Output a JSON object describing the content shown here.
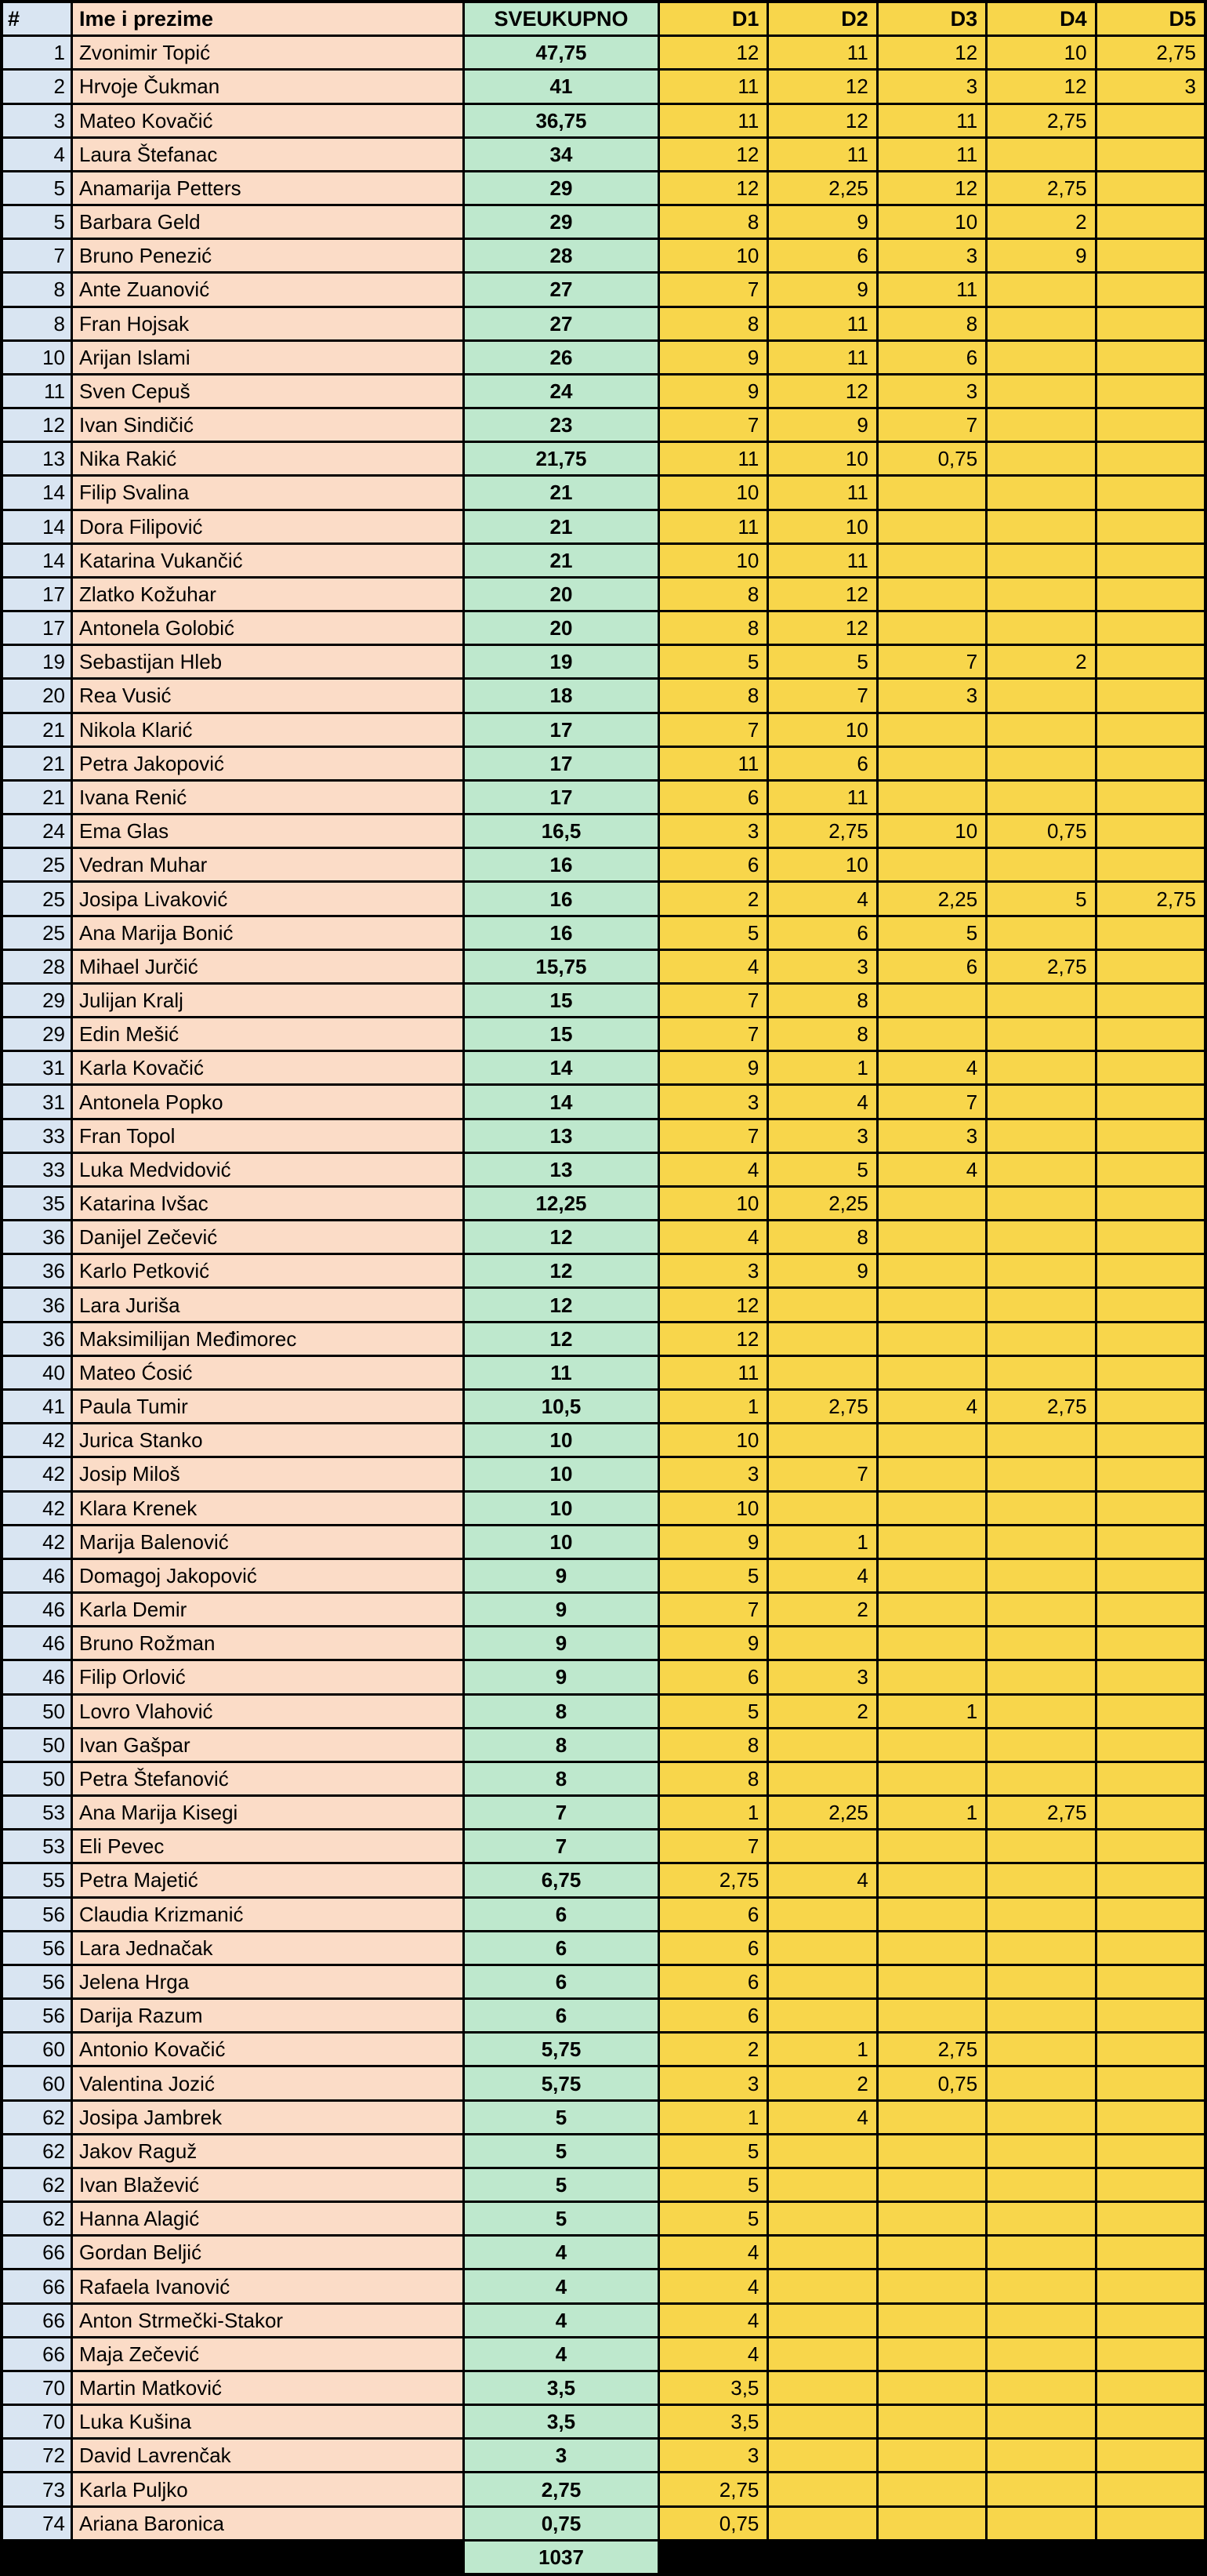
{
  "title": "Leaderboard spreadsheet",
  "colors": {
    "rank_col": "#D9E5F2",
    "name_col": "#FBDCC7",
    "total_col": "#BEE8CD",
    "day_col": "#F8D64B",
    "grid": "#000000"
  },
  "header": {
    "rank": "#",
    "name": "Ime i prezime",
    "total": "SVEUKUPNO",
    "days": [
      "D1",
      "D2",
      "D3",
      "D4",
      "D5"
    ]
  },
  "footer": {
    "grand_total": "1037"
  },
  "rows": [
    {
      "rank": "1",
      "name": "Zvonimir Topić",
      "total": "47,75",
      "d": [
        "12",
        "11",
        "12",
        "10",
        "2,75"
      ]
    },
    {
      "rank": "2",
      "name": "Hrvoje Čukman",
      "total": "41",
      "d": [
        "11",
        "12",
        "3",
        "12",
        "3"
      ]
    },
    {
      "rank": "3",
      "name": "Mateo Kovačić",
      "total": "36,75",
      "d": [
        "11",
        "12",
        "11",
        "2,75",
        ""
      ]
    },
    {
      "rank": "4",
      "name": "Laura Štefanac",
      "total": "34",
      "d": [
        "12",
        "11",
        "11",
        "",
        ""
      ]
    },
    {
      "rank": "5",
      "name": "Anamarija Petters",
      "total": "29",
      "d": [
        "12",
        "2,25",
        "12",
        "2,75",
        ""
      ]
    },
    {
      "rank": "5",
      "name": "Barbara Geld",
      "total": "29",
      "d": [
        "8",
        "9",
        "10",
        "2",
        ""
      ]
    },
    {
      "rank": "7",
      "name": "Bruno Penezić",
      "total": "28",
      "d": [
        "10",
        "6",
        "3",
        "9",
        ""
      ]
    },
    {
      "rank": "8",
      "name": "Ante Zuanović",
      "total": "27",
      "d": [
        "7",
        "9",
        "11",
        "",
        ""
      ]
    },
    {
      "rank": "8",
      "name": "Fran Hojsak",
      "total": "27",
      "d": [
        "8",
        "11",
        "8",
        "",
        ""
      ]
    },
    {
      "rank": "10",
      "name": "Arijan Islami",
      "total": "26",
      "d": [
        "9",
        "11",
        "6",
        "",
        ""
      ]
    },
    {
      "rank": "11",
      "name": "Sven Cepuš",
      "total": "24",
      "d": [
        "9",
        "12",
        "3",
        "",
        ""
      ]
    },
    {
      "rank": "12",
      "name": "Ivan Sindičić",
      "total": "23",
      "d": [
        "7",
        "9",
        "7",
        "",
        ""
      ]
    },
    {
      "rank": "13",
      "name": "Nika Rakić",
      "total": "21,75",
      "d": [
        "11",
        "10",
        "0,75",
        "",
        ""
      ]
    },
    {
      "rank": "14",
      "name": "Filip Svalina",
      "total": "21",
      "d": [
        "10",
        "11",
        "",
        "",
        ""
      ]
    },
    {
      "rank": "14",
      "name": "Dora Filipović",
      "total": "21",
      "d": [
        "11",
        "10",
        "",
        "",
        ""
      ]
    },
    {
      "rank": "14",
      "name": "Katarina Vukančić",
      "total": "21",
      "d": [
        "10",
        "11",
        "",
        "",
        ""
      ]
    },
    {
      "rank": "17",
      "name": "Zlatko Kožuhar",
      "total": "20",
      "d": [
        "8",
        "12",
        "",
        "",
        ""
      ]
    },
    {
      "rank": "17",
      "name": "Antonela Golobić",
      "total": "20",
      "d": [
        "8",
        "12",
        "",
        "",
        ""
      ]
    },
    {
      "rank": "19",
      "name": "Sebastijan Hleb",
      "total": "19",
      "d": [
        "5",
        "5",
        "7",
        "2",
        ""
      ]
    },
    {
      "rank": "20",
      "name": "Rea Vusić",
      "total": "18",
      "d": [
        "8",
        "7",
        "3",
        "",
        ""
      ]
    },
    {
      "rank": "21",
      "name": "Nikola Klarić",
      "total": "17",
      "d": [
        "7",
        "10",
        "",
        "",
        ""
      ]
    },
    {
      "rank": "21",
      "name": "Petra Jakopović",
      "total": "17",
      "d": [
        "11",
        "6",
        "",
        "",
        ""
      ]
    },
    {
      "rank": "21",
      "name": "Ivana Renić",
      "total": "17",
      "d": [
        "6",
        "11",
        "",
        "",
        ""
      ]
    },
    {
      "rank": "24",
      "name": "Ema Glas",
      "total": "16,5",
      "d": [
        "3",
        "2,75",
        "10",
        "0,75",
        ""
      ]
    },
    {
      "rank": "25",
      "name": "Vedran Muhar",
      "total": "16",
      "d": [
        "6",
        "10",
        "",
        "",
        ""
      ]
    },
    {
      "rank": "25",
      "name": "Josipa Livaković",
      "total": "16",
      "d": [
        "2",
        "4",
        "2,25",
        "5",
        "2,75"
      ]
    },
    {
      "rank": "25",
      "name": "Ana Marija Bonić",
      "total": "16",
      "d": [
        "5",
        "6",
        "5",
        "",
        ""
      ]
    },
    {
      "rank": "28",
      "name": "Mihael Jurčić",
      "total": "15,75",
      "d": [
        "4",
        "3",
        "6",
        "2,75",
        ""
      ]
    },
    {
      "rank": "29",
      "name": "Julijan Kralj",
      "total": "15",
      "d": [
        "7",
        "8",
        "",
        "",
        ""
      ]
    },
    {
      "rank": "29",
      "name": "Edin Mešić",
      "total": "15",
      "d": [
        "7",
        "8",
        "",
        "",
        ""
      ]
    },
    {
      "rank": "31",
      "name": "Karla Kovačić",
      "total": "14",
      "d": [
        "9",
        "1",
        "4",
        "",
        ""
      ]
    },
    {
      "rank": "31",
      "name": "Antonela Popko",
      "total": "14",
      "d": [
        "3",
        "4",
        "7",
        "",
        ""
      ]
    },
    {
      "rank": "33",
      "name": "Fran Topol",
      "total": "13",
      "d": [
        "7",
        "3",
        "3",
        "",
        ""
      ]
    },
    {
      "rank": "33",
      "name": "Luka Medvidović",
      "total": "13",
      "d": [
        "4",
        "5",
        "4",
        "",
        ""
      ]
    },
    {
      "rank": "35",
      "name": "Katarina Ivšac",
      "total": "12,25",
      "d": [
        "10",
        "2,25",
        "",
        "",
        ""
      ]
    },
    {
      "rank": "36",
      "name": "Danijel Zečević",
      "total": "12",
      "d": [
        "4",
        "8",
        "",
        "",
        ""
      ]
    },
    {
      "rank": "36",
      "name": "Karlo Petković",
      "total": "12",
      "d": [
        "3",
        "9",
        "",
        "",
        ""
      ]
    },
    {
      "rank": "36",
      "name": "Lara Juriša",
      "total": "12",
      "d": [
        "12",
        "",
        "",
        "",
        ""
      ]
    },
    {
      "rank": "36",
      "name": "Maksimilijan Međimorec",
      "total": "12",
      "d": [
        "12",
        "",
        "",
        "",
        ""
      ]
    },
    {
      "rank": "40",
      "name": "Mateo Ćosić",
      "total": "11",
      "d": [
        "11",
        "",
        "",
        "",
        ""
      ]
    },
    {
      "rank": "41",
      "name": "Paula Tumir",
      "total": "10,5",
      "d": [
        "1",
        "2,75",
        "4",
        "2,75",
        ""
      ]
    },
    {
      "rank": "42",
      "name": "Jurica Stanko",
      "total": "10",
      "d": [
        "10",
        "",
        "",
        "",
        ""
      ]
    },
    {
      "rank": "42",
      "name": "Josip Miloš",
      "total": "10",
      "d": [
        "3",
        "7",
        "",
        "",
        ""
      ]
    },
    {
      "rank": "42",
      "name": "Klara Krenek",
      "total": "10",
      "d": [
        "10",
        "",
        "",
        "",
        ""
      ]
    },
    {
      "rank": "42",
      "name": "Marija Balenović",
      "total": "10",
      "d": [
        "9",
        "1",
        "",
        "",
        ""
      ]
    },
    {
      "rank": "46",
      "name": "Domagoj Jakopović",
      "total": "9",
      "d": [
        "5",
        "4",
        "",
        "",
        ""
      ]
    },
    {
      "rank": "46",
      "name": "Karla Demir",
      "total": "9",
      "d": [
        "7",
        "2",
        "",
        "",
        ""
      ]
    },
    {
      "rank": "46",
      "name": "Bruno Rožman",
      "total": "9",
      "d": [
        "9",
        "",
        "",
        "",
        ""
      ]
    },
    {
      "rank": "46",
      "name": "Filip Orlović",
      "total": "9",
      "d": [
        "6",
        "3",
        "",
        "",
        ""
      ]
    },
    {
      "rank": "50",
      "name": "Lovro Vlahović",
      "total": "8",
      "d": [
        "5",
        "2",
        "1",
        "",
        ""
      ]
    },
    {
      "rank": "50",
      "name": "Ivan Gašpar",
      "total": "8",
      "d": [
        "8",
        "",
        "",
        "",
        ""
      ]
    },
    {
      "rank": "50",
      "name": "Petra Štefanović",
      "total": "8",
      "d": [
        "8",
        "",
        "",
        "",
        ""
      ]
    },
    {
      "rank": "53",
      "name": "Ana Marija Kisegi",
      "total": "7",
      "d": [
        "1",
        "2,25",
        "1",
        "2,75",
        ""
      ]
    },
    {
      "rank": "53",
      "name": "Eli Pevec",
      "total": "7",
      "d": [
        "7",
        "",
        "",
        "",
        ""
      ]
    },
    {
      "rank": "55",
      "name": "Petra Majetić",
      "total": "6,75",
      "d": [
        "2,75",
        "4",
        "",
        "",
        ""
      ]
    },
    {
      "rank": "56",
      "name": "Claudia Krizmanić",
      "total": "6",
      "d": [
        "6",
        "",
        "",
        "",
        ""
      ]
    },
    {
      "rank": "56",
      "name": "Lara Jednačak",
      "total": "6",
      "d": [
        "6",
        "",
        "",
        "",
        ""
      ]
    },
    {
      "rank": "56",
      "name": "Jelena Hrga",
      "total": "6",
      "d": [
        "6",
        "",
        "",
        "",
        ""
      ]
    },
    {
      "rank": "56",
      "name": "Darija Razum",
      "total": "6",
      "d": [
        "6",
        "",
        "",
        "",
        ""
      ]
    },
    {
      "rank": "60",
      "name": "Antonio Kovačić",
      "total": "5,75",
      "d": [
        "2",
        "1",
        "2,75",
        "",
        ""
      ]
    },
    {
      "rank": "60",
      "name": "Valentina Jozić",
      "total": "5,75",
      "d": [
        "3",
        "2",
        "0,75",
        "",
        ""
      ]
    },
    {
      "rank": "62",
      "name": "Josipa Jambrek",
      "total": "5",
      "d": [
        "1",
        "4",
        "",
        "",
        ""
      ]
    },
    {
      "rank": "62",
      "name": "Jakov Raguž",
      "total": "5",
      "d": [
        "5",
        "",
        "",
        "",
        ""
      ]
    },
    {
      "rank": "62",
      "name": "Ivan Blažević",
      "total": "5",
      "d": [
        "5",
        "",
        "",
        "",
        ""
      ]
    },
    {
      "rank": "62",
      "name": "Hanna Alagić",
      "total": "5",
      "d": [
        "5",
        "",
        "",
        "",
        ""
      ]
    },
    {
      "rank": "66",
      "name": "Gordan Beljić",
      "total": "4",
      "d": [
        "4",
        "",
        "",
        "",
        ""
      ]
    },
    {
      "rank": "66",
      "name": "Rafaela Ivanović",
      "total": "4",
      "d": [
        "4",
        "",
        "",
        "",
        ""
      ]
    },
    {
      "rank": "66",
      "name": "Anton Strmečki-Stakor",
      "total": "4",
      "d": [
        "4",
        "",
        "",
        "",
        ""
      ]
    },
    {
      "rank": "66",
      "name": "Maja Zečević",
      "total": "4",
      "d": [
        "4",
        "",
        "",
        "",
        ""
      ]
    },
    {
      "rank": "70",
      "name": "Martin Matković",
      "total": "3,5",
      "d": [
        "3,5",
        "",
        "",
        "",
        ""
      ]
    },
    {
      "rank": "70",
      "name": "Luka Kušina",
      "total": "3,5",
      "d": [
        "3,5",
        "",
        "",
        "",
        ""
      ]
    },
    {
      "rank": "72",
      "name": "David Lavrenčak",
      "total": "3",
      "d": [
        "3",
        "",
        "",
        "",
        ""
      ]
    },
    {
      "rank": "73",
      "name": "Karla Puljko",
      "total": "2,75",
      "d": [
        "2,75",
        "",
        "",
        "",
        ""
      ]
    },
    {
      "rank": "74",
      "name": "Ariana Baronica",
      "total": "0,75",
      "d": [
        "0,75",
        "",
        "",
        "",
        ""
      ]
    }
  ]
}
